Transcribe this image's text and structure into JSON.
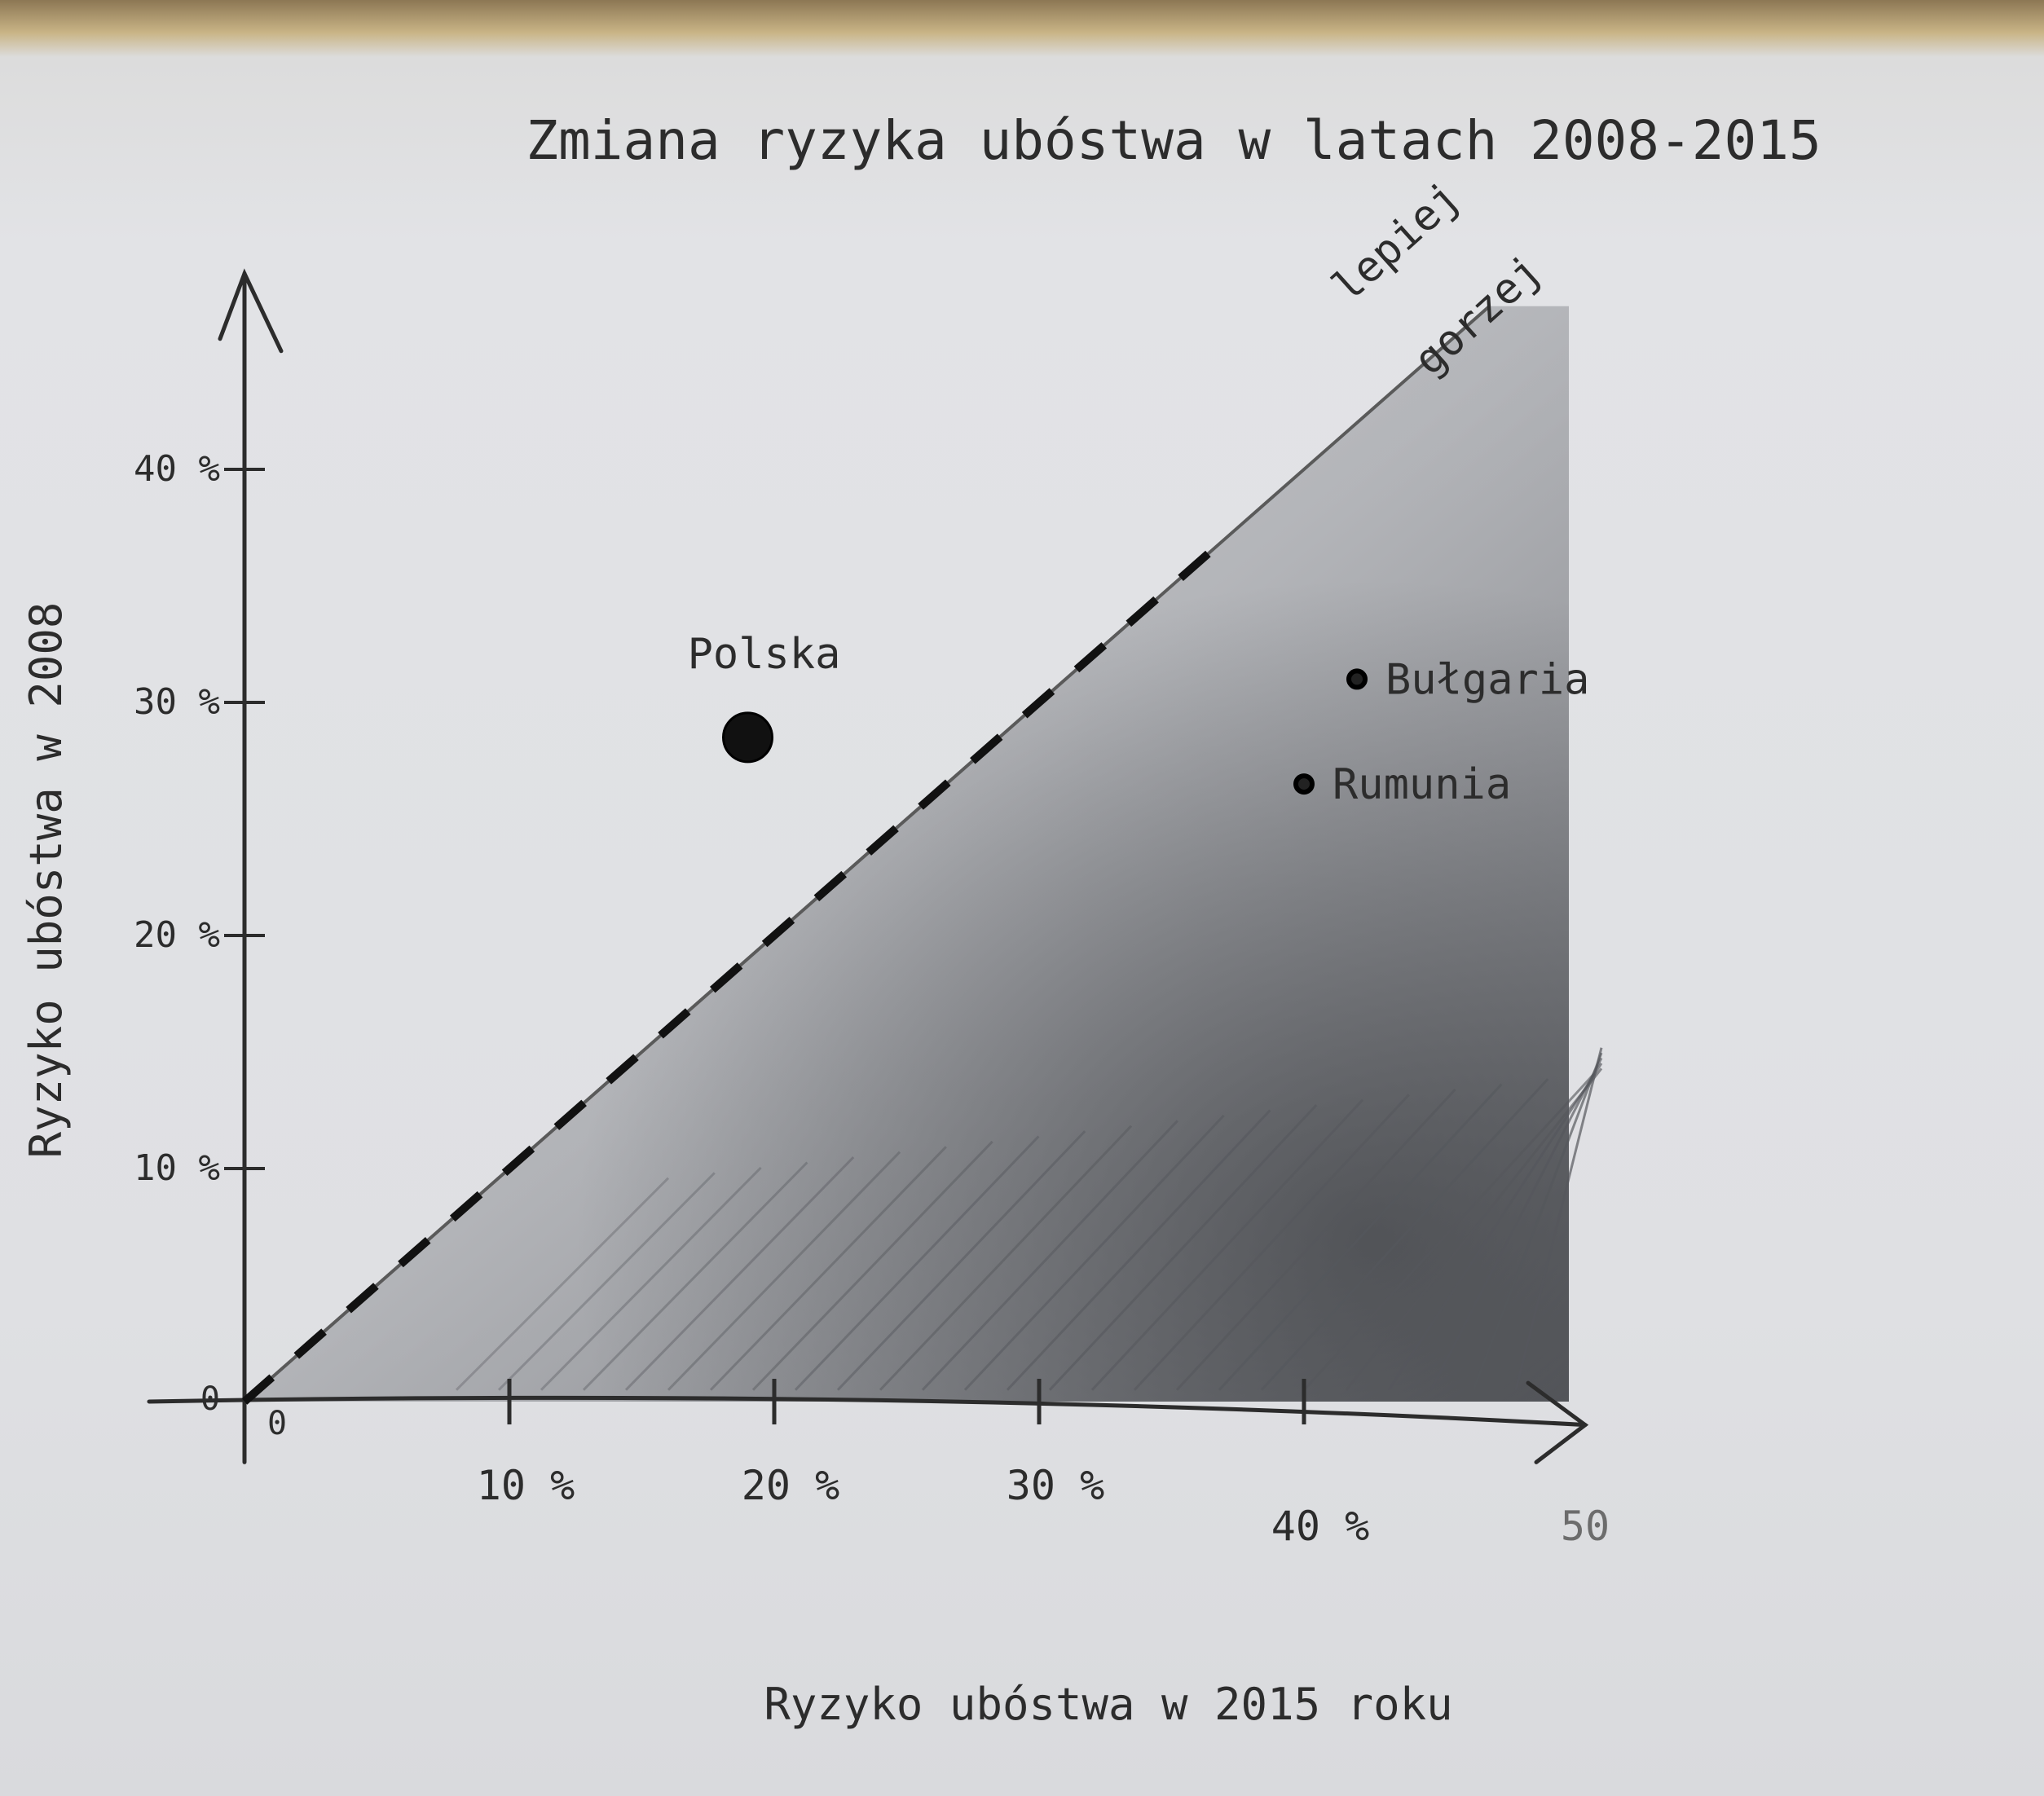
{
  "chart_data": {
    "type": "scatter",
    "title": "Zmiana ryzyka ubóstwa w latach 2008-2015",
    "xlabel": "Ryzyko ubóstwa w 2015 roku",
    "ylabel": "Ryzyko ubóstwa w 2008",
    "xlim": [
      0,
      50
    ],
    "ylim": [
      0,
      47
    ],
    "grid": false,
    "x_ticks": [
      {
        "value": 0,
        "label": "0"
      },
      {
        "value": 10,
        "label": "10 %"
      },
      {
        "value": 20,
        "label": "20 %"
      },
      {
        "value": 30,
        "label": "30 %"
      },
      {
        "value": 40,
        "label": "40 %"
      },
      {
        "value": 50,
        "label": "50"
      }
    ],
    "y_ticks": [
      {
        "value": 0,
        "label": "0"
      },
      {
        "value": 10,
        "label": "10 %"
      },
      {
        "value": 20,
        "label": "20 %"
      },
      {
        "value": 30,
        "label": "30 %"
      },
      {
        "value": 40,
        "label": "40 %"
      }
    ],
    "points": [
      {
        "label": "Polska",
        "x": 19,
        "y": 28.5,
        "size": "large"
      },
      {
        "label": "Bułgaria",
        "x": 42,
        "y": 31,
        "size": "small"
      },
      {
        "label": "Rumunia",
        "x": 40,
        "y": 26.5,
        "size": "small"
      }
    ],
    "reference_line": {
      "style": "dashed",
      "slope": 1,
      "from": 0,
      "to": 47
    },
    "region_labels": {
      "above": "lepiej",
      "below": "gorzej"
    },
    "shaded_region": "below-diagonal"
  },
  "colors": {
    "pencil": "#2c2c2c",
    "paper": "#e0e1e4",
    "shading": "#7d7f84",
    "desk": "#c9b486"
  }
}
